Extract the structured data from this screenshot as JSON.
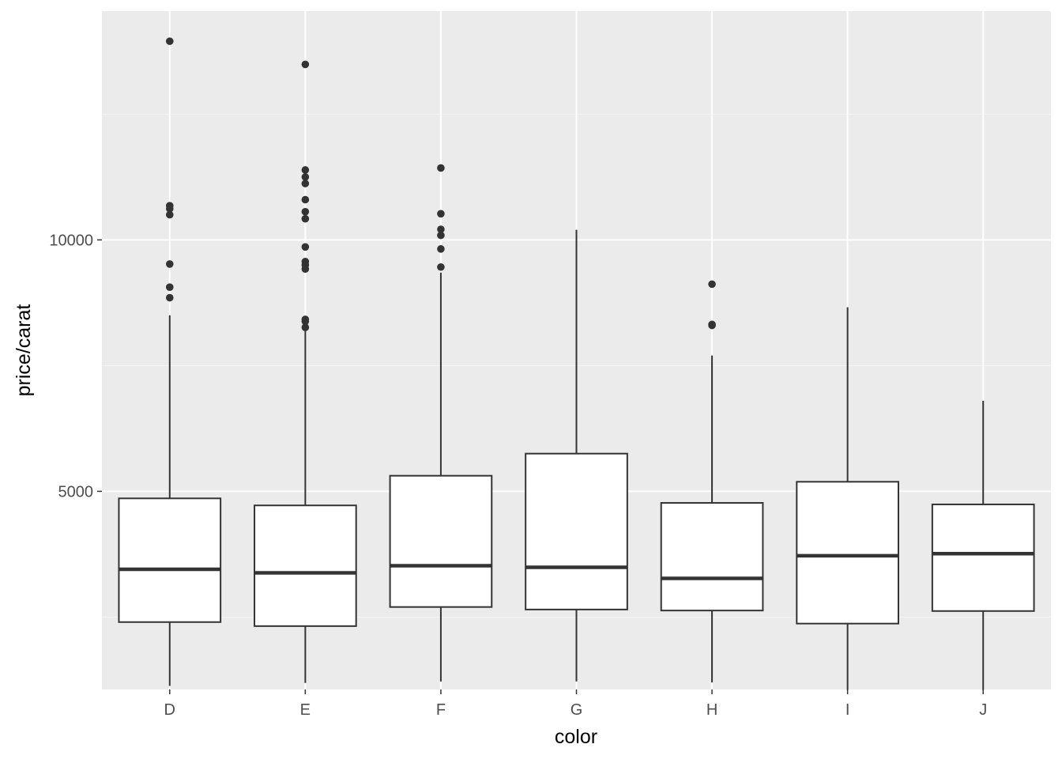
{
  "chart_data": {
    "type": "boxplot",
    "title": "",
    "xlabel": "color",
    "ylabel": "price/carat",
    "categories": [
      "D",
      "E",
      "F",
      "G",
      "H",
      "I",
      "J"
    ],
    "ylim": [
      1060,
      14550
    ],
    "y_ticks": [
      5000,
      10000
    ],
    "y_tick_labels": [
      "5000",
      "10000"
    ],
    "grid": true,
    "legend": "none",
    "colors": {
      "panel_background": "#EBEBEB",
      "grid_major": "#FFFFFF",
      "grid_minor": "#F5F5F5",
      "box_fill": "#FFFFFF",
      "box_line": "#333333",
      "tick_text": "#4D4D4D",
      "axis_title": "#000000"
    },
    "boxes": [
      {
        "category": "D",
        "whisker_low": 1130,
        "q1": 2400,
        "median": 3450,
        "q3": 4860,
        "whisker_high": 8500,
        "outliers": [
          13950,
          10680,
          10620,
          10500,
          9520,
          9060,
          8850
        ]
      },
      {
        "category": "E",
        "whisker_low": 1190,
        "q1": 2320,
        "median": 3380,
        "q3": 4720,
        "whisker_high": 8250,
        "outliers": [
          13490,
          11390,
          11250,
          11120,
          10800,
          10560,
          10420,
          9860,
          9570,
          9500,
          9420,
          8420,
          8380,
          8260
        ]
      },
      {
        "category": "F",
        "whisker_low": 1220,
        "q1": 2700,
        "median": 3520,
        "q3": 5310,
        "whisker_high": 9350,
        "outliers": [
          11430,
          10520,
          10210,
          10090,
          9820,
          9460
        ]
      },
      {
        "category": "G",
        "whisker_low": 1220,
        "q1": 2650,
        "median": 3490,
        "q3": 5750,
        "whisker_high": 10200,
        "outliers": []
      },
      {
        "category": "H",
        "whisker_low": 1200,
        "q1": 2630,
        "median": 3270,
        "q3": 4770,
        "whisker_high": 7700,
        "outliers": [
          9120,
          8320,
          8300
        ]
      },
      {
        "category": "I",
        "whisker_low": 1050,
        "q1": 2370,
        "median": 3720,
        "q3": 5190,
        "whisker_high": 8660,
        "outliers": []
      },
      {
        "category": "J",
        "whisker_low": 1050,
        "q1": 2620,
        "median": 3760,
        "q3": 4740,
        "whisker_high": 6800,
        "outliers": []
      }
    ]
  }
}
